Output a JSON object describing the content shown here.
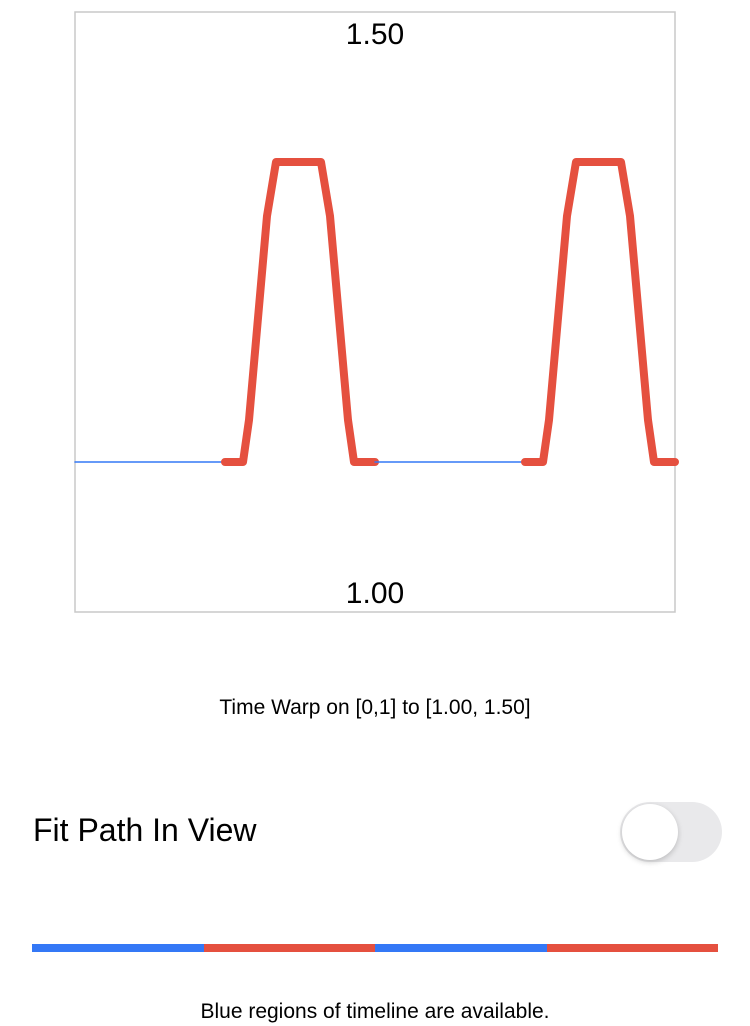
{
  "chart_data": {
    "type": "line",
    "title": "",
    "x_range": [
      0,
      1
    ],
    "ylim": [
      1.0,
      1.5
    ],
    "y_top_label": "1.50",
    "y_bottom_label": "1.00",
    "grid": false,
    "segments": [
      {
        "color": "#3478f6",
        "x": [
          0,
          0.25
        ],
        "y": [
          1.125,
          1.125
        ]
      },
      {
        "color": "#e5503f",
        "x": [
          0.25,
          0.28,
          0.29,
          0.32,
          0.335,
          0.41,
          0.425,
          0.455,
          0.465,
          0.5
        ],
        "y": [
          1.125,
          1.125,
          1.16,
          1.33,
          1.375,
          1.375,
          1.33,
          1.16,
          1.125,
          1.125
        ]
      },
      {
        "color": "#3478f6",
        "x": [
          0.5,
          0.75
        ],
        "y": [
          1.125,
          1.125
        ]
      },
      {
        "color": "#e5503f",
        "x": [
          0.75,
          0.78,
          0.79,
          0.82,
          0.835,
          0.91,
          0.925,
          0.955,
          0.965,
          1.0
        ],
        "y": [
          1.125,
          1.125,
          1.16,
          1.33,
          1.375,
          1.375,
          1.33,
          1.16,
          1.125,
          1.125
        ]
      }
    ]
  },
  "caption": "Time Warp on [0,1] to [1.00, 1.50]",
  "fit_path": {
    "label": "Fit Path In View",
    "on": false
  },
  "timeline": {
    "segments": [
      "#3478f6",
      "#e5503f",
      "#3478f6",
      "#e5503f"
    ]
  },
  "footer": "Blue regions of timeline are available."
}
